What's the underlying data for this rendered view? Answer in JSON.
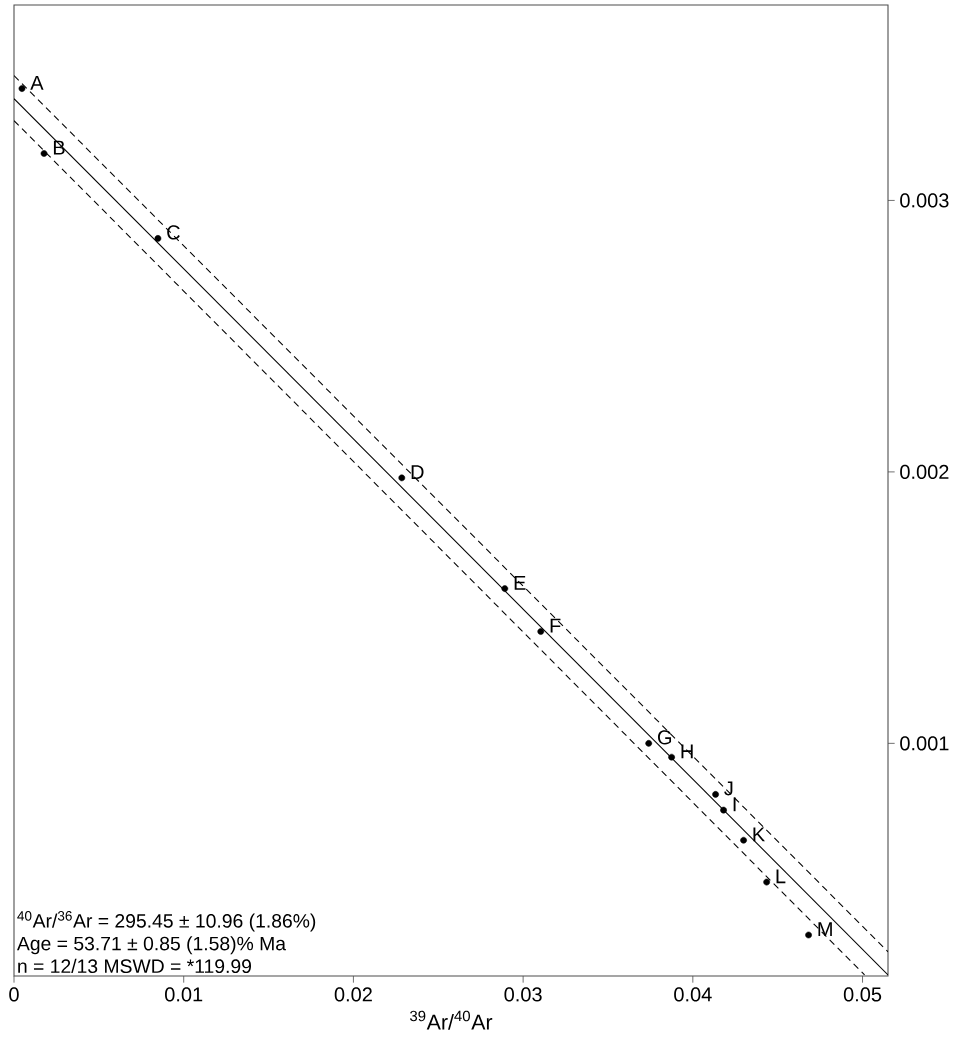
{
  "chart_data": {
    "type": "scatter",
    "xlabel": "$^{39}$Ar/$^{40}$Ar",
    "xlim": [
      0,
      0.0515
    ],
    "ylim": [
      0.000143,
      0.00372
    ],
    "xticks": [
      0,
      0.01,
      0.02,
      0.03,
      0.04,
      0.05
    ],
    "yticks": [
      0.001,
      0.002,
      0.003
    ],
    "marker": "circle",
    "series": [
      {
        "color": "#000000",
        "x": [
          0.00047,
          0.00177,
          0.00848,
          0.02285,
          0.02892,
          0.03104,
          0.0374,
          0.03875,
          0.04181,
          0.04134,
          0.04299,
          0.04435,
          0.04682
        ],
        "values": [
          0.003412,
          0.003173,
          0.00286,
          0.001978,
          0.00157,
          0.001412,
          0.001,
          0.000949,
          0.000754,
          0.000812,
          0.000643,
          0.000489,
          0.000294
        ]
      },
      {
        "type": "line",
        "marker": "none",
        "color": "#000000",
        "line_style": "solid",
        "x": [
          0,
          0.0515
        ],
        "values": [
          0.003375,
          0.000147
        ]
      },
      {
        "type": "line",
        "color": "#000000",
        "marker": "none",
        "line_style": "dashed",
        "x": [
          0,
          0.0515
        ],
        "values": [
          0.00346,
          0.000232
        ]
      },
      {
        "type": "line",
        "color": "#000000",
        "marker": "none",
        "line_style": "dashed",
        "x": [
          0,
          0.05012
        ],
        "values": [
          0.003294,
          0.000147
        ]
      }
    ],
    "annotations": [
      "$^{40}$Ar/$^{36}$Ar = 295.45 ± 10.96 (1.86%)",
      "Age = 53.71 ± 0.85 (1.58)% Ma",
      "n = 12/13 MSWD = *119.99",
      {
        "text": "A",
        "x": 0.00047,
        "y": 0.003412
      },
      {
        "text": "B",
        "x": 0.00177,
        "y": 0.003173
      },
      {
        "text": "C",
        "x": 0.00848,
        "y": 0.00286
      },
      {
        "text": "D",
        "x": 0.02285,
        "y": 0.001978
      },
      {
        "text": "E",
        "x": 0.02892,
        "y": 0.00157
      },
      {
        "text": "F",
        "x": 0.03104,
        "y": 0.001412
      },
      {
        "text": "G",
        "x": 0.0374,
        "y": 0.001
      },
      {
        "text": "H",
        "x": 0.03875,
        "y": 0.000949
      },
      {
        "text": "I",
        "x": 0.04181,
        "y": 0.000754
      },
      {
        "text": "J",
        "x": 0.04134,
        "y": 0.000812
      },
      {
        "text": "K",
        "x": 0.04299,
        "y": 0.000643
      },
      {
        "text": "L",
        "x": 0.04435,
        "y": 0.000489
      },
      {
        "text": "M",
        "x": 0.04682,
        "y": 0.000294
      }
    ]
  }
}
